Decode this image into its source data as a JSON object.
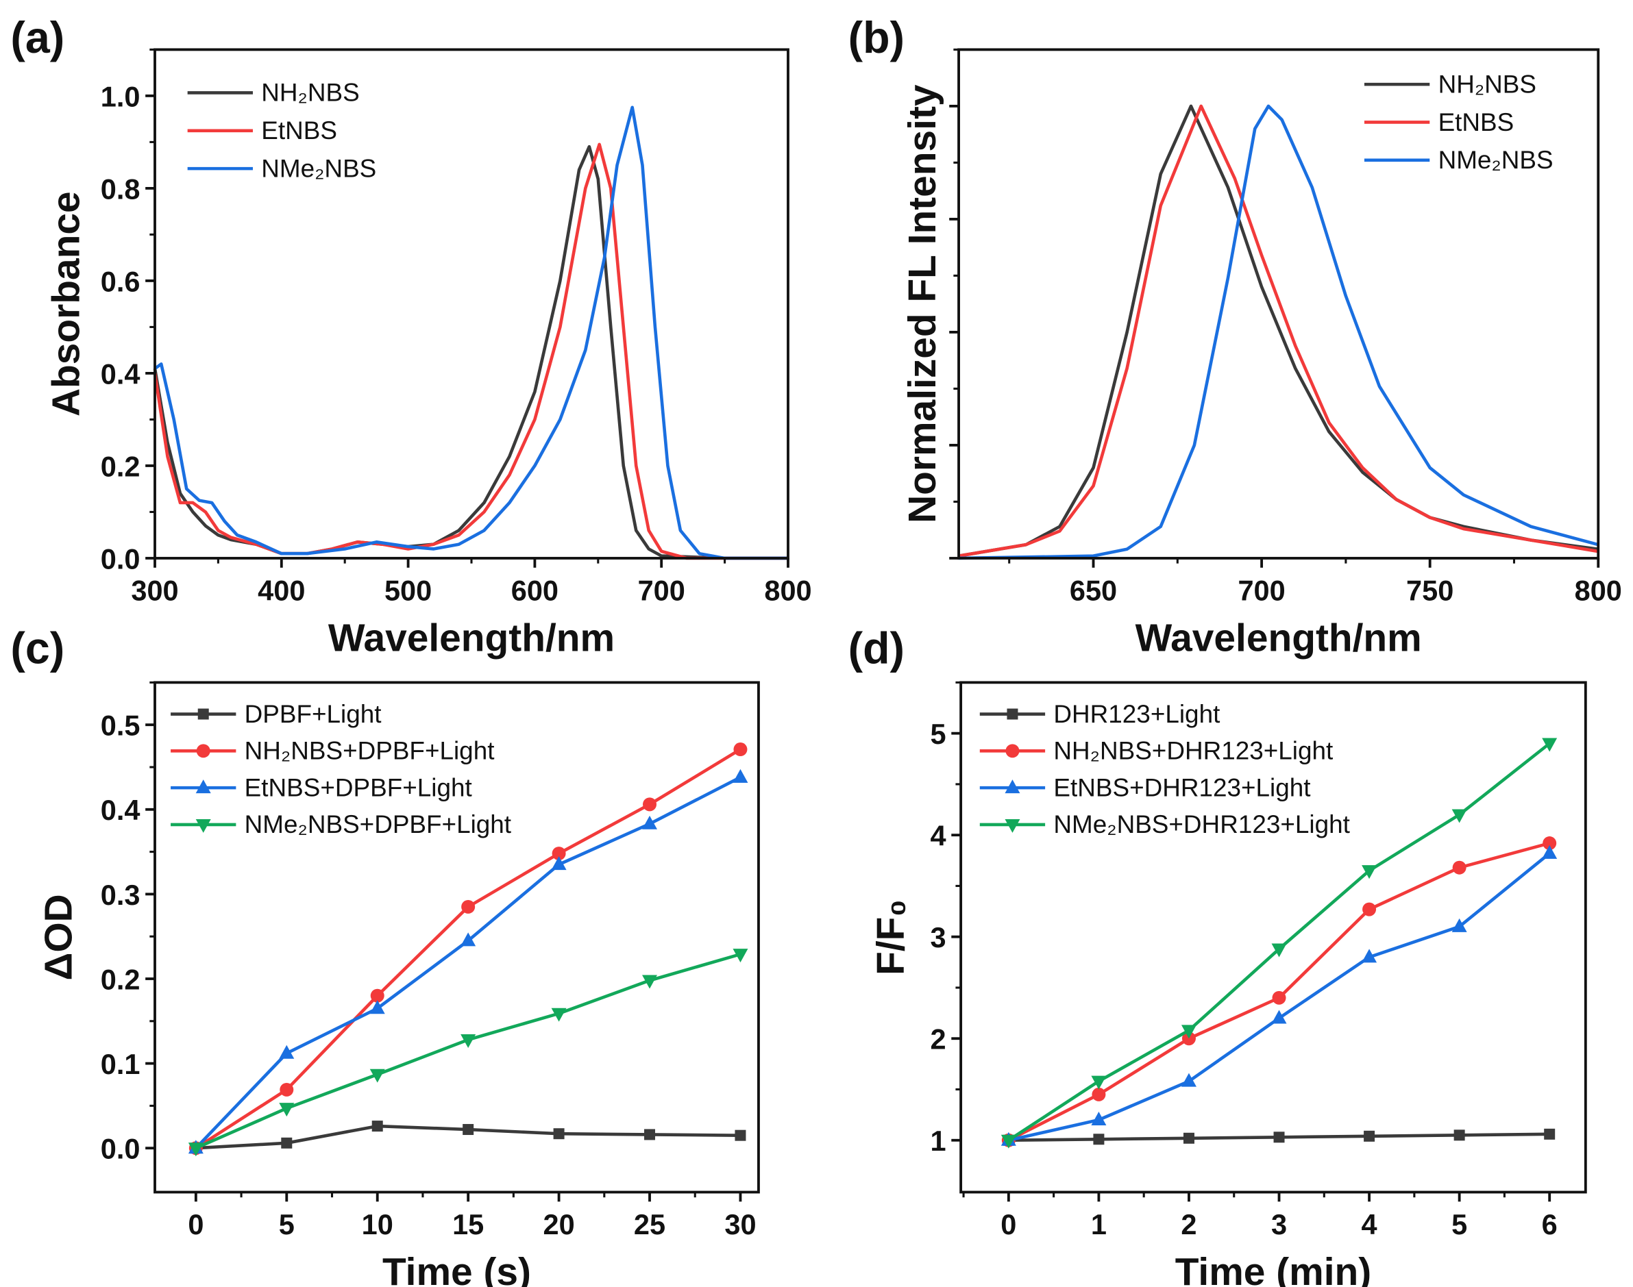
{
  "colors": {
    "black": "#3a3a3a",
    "red": "#f23a3a",
    "blue": "#1a6fe0",
    "green": "#12a85a"
  },
  "chart_data": [
    {
      "panel": "(a)",
      "type": "line",
      "xlabel": "Wavelength/nm",
      "ylabel": "Absorbance",
      "xlim": [
        300,
        800
      ],
      "ylim": [
        0,
        1.1
      ],
      "xticks": [
        300,
        400,
        500,
        600,
        700,
        800
      ],
      "yticks": [
        0.0,
        0.2,
        0.4,
        0.6,
        0.8,
        1.0
      ],
      "ytick_labels": [
        "0.0",
        "0.2",
        "0.4",
        "0.6",
        "0.8",
        "1.0"
      ],
      "legend": "top-left",
      "series": [
        {
          "name": "NH₂NBS",
          "color": "black",
          "points": [
            [
              300,
              0.41
            ],
            [
              310,
              0.25
            ],
            [
              320,
              0.14
            ],
            [
              330,
              0.1
            ],
            [
              340,
              0.07
            ],
            [
              350,
              0.05
            ],
            [
              360,
              0.04
            ],
            [
              380,
              0.03
            ],
            [
              400,
              0.01
            ],
            [
              420,
              0.01
            ],
            [
              440,
              0.02
            ],
            [
              460,
              0.035
            ],
            [
              480,
              0.03
            ],
            [
              500,
              0.025
            ],
            [
              520,
              0.03
            ],
            [
              540,
              0.06
            ],
            [
              560,
              0.12
            ],
            [
              580,
              0.22
            ],
            [
              600,
              0.36
            ],
            [
              620,
              0.6
            ],
            [
              635,
              0.84
            ],
            [
              643,
              0.89
            ],
            [
              650,
              0.82
            ],
            [
              660,
              0.5
            ],
            [
              670,
              0.2
            ],
            [
              680,
              0.06
            ],
            [
              690,
              0.02
            ],
            [
              700,
              0.005
            ],
            [
              750,
              0
            ],
            [
              800,
              0
            ]
          ]
        },
        {
          "name": "EtNBS",
          "color": "red",
          "points": [
            [
              300,
              0.4
            ],
            [
              310,
              0.22
            ],
            [
              320,
              0.12
            ],
            [
              330,
              0.12
            ],
            [
              340,
              0.1
            ],
            [
              350,
              0.06
            ],
            [
              360,
              0.045
            ],
            [
              380,
              0.03
            ],
            [
              400,
              0.01
            ],
            [
              420,
              0.01
            ],
            [
              440,
              0.02
            ],
            [
              460,
              0.035
            ],
            [
              480,
              0.03
            ],
            [
              500,
              0.02
            ],
            [
              520,
              0.03
            ],
            [
              540,
              0.05
            ],
            [
              560,
              0.1
            ],
            [
              580,
              0.18
            ],
            [
              600,
              0.3
            ],
            [
              620,
              0.5
            ],
            [
              640,
              0.8
            ],
            [
              651,
              0.895
            ],
            [
              660,
              0.8
            ],
            [
              670,
              0.5
            ],
            [
              680,
              0.2
            ],
            [
              690,
              0.06
            ],
            [
              700,
              0.015
            ],
            [
              720,
              0
            ],
            [
              800,
              0
            ]
          ]
        },
        {
          "name": "NMe₂NBS",
          "color": "blue",
          "points": [
            [
              300,
              0.41
            ],
            [
              305,
              0.42
            ],
            [
              315,
              0.3
            ],
            [
              325,
              0.15
            ],
            [
              335,
              0.125
            ],
            [
              345,
              0.12
            ],
            [
              355,
              0.08
            ],
            [
              365,
              0.05
            ],
            [
              380,
              0.035
            ],
            [
              400,
              0.01
            ],
            [
              420,
              0.01
            ],
            [
              450,
              0.02
            ],
            [
              475,
              0.035
            ],
            [
              500,
              0.025
            ],
            [
              520,
              0.02
            ],
            [
              540,
              0.03
            ],
            [
              560,
              0.06
            ],
            [
              580,
              0.12
            ],
            [
              600,
              0.2
            ],
            [
              620,
              0.3
            ],
            [
              640,
              0.45
            ],
            [
              655,
              0.65
            ],
            [
              665,
              0.85
            ],
            [
              677,
              0.975
            ],
            [
              685,
              0.85
            ],
            [
              695,
              0.5
            ],
            [
              705,
              0.2
            ],
            [
              715,
              0.06
            ],
            [
              730,
              0.01
            ],
            [
              750,
              0
            ],
            [
              800,
              0
            ]
          ]
        }
      ]
    },
    {
      "panel": "(b)",
      "type": "line",
      "xlabel": "Wavelength/nm",
      "ylabel": "Normalized FL Intensity",
      "xlim": [
        610,
        800
      ],
      "ylim": [
        0,
        1.125
      ],
      "xticks": [
        650,
        700,
        750,
        800
      ],
      "yticks": [
        0,
        0.25,
        0.5,
        0.75,
        1.0
      ],
      "ytick_labels": [],
      "legend": "top-right",
      "series": [
        {
          "name": "NH₂NBS",
          "color": "black",
          "points": [
            [
              610,
              0.005
            ],
            [
              630,
              0.03
            ],
            [
              640,
              0.07
            ],
            [
              650,
              0.2
            ],
            [
              660,
              0.5
            ],
            [
              670,
              0.85
            ],
            [
              679,
              1.0
            ],
            [
              690,
              0.82
            ],
            [
              700,
              0.6
            ],
            [
              710,
              0.42
            ],
            [
              720,
              0.28
            ],
            [
              730,
              0.19
            ],
            [
              740,
              0.13
            ],
            [
              750,
              0.09
            ],
            [
              760,
              0.07
            ],
            [
              780,
              0.04
            ],
            [
              800,
              0.02
            ]
          ]
        },
        {
          "name": "EtNBS",
          "color": "red",
          "points": [
            [
              610,
              0.005
            ],
            [
              630,
              0.03
            ],
            [
              640,
              0.06
            ],
            [
              650,
              0.16
            ],
            [
              660,
              0.42
            ],
            [
              670,
              0.78
            ],
            [
              682,
              1.0
            ],
            [
              692,
              0.84
            ],
            [
              700,
              0.67
            ],
            [
              710,
              0.47
            ],
            [
              720,
              0.3
            ],
            [
              730,
              0.2
            ],
            [
              740,
              0.13
            ],
            [
              750,
              0.09
            ],
            [
              760,
              0.065
            ],
            [
              780,
              0.04
            ],
            [
              800,
              0.015
            ]
          ]
        },
        {
          "name": "NMe₂NBS",
          "color": "blue",
          "points": [
            [
              610,
              0
            ],
            [
              650,
              0.005
            ],
            [
              660,
              0.02
            ],
            [
              670,
              0.07
            ],
            [
              680,
              0.25
            ],
            [
              690,
              0.62
            ],
            [
              698,
              0.95
            ],
            [
              702,
              1.0
            ],
            [
              706,
              0.97
            ],
            [
              715,
              0.82
            ],
            [
              725,
              0.58
            ],
            [
              735,
              0.38
            ],
            [
              750,
              0.2
            ],
            [
              760,
              0.14
            ],
            [
              780,
              0.07
            ],
            [
              800,
              0.03
            ]
          ]
        }
      ]
    },
    {
      "panel": "(c)",
      "type": "line",
      "xlabel": "Time (s)",
      "ylabel": "ΔOD",
      "xlim": [
        -2.26,
        31
      ],
      "ylim": [
        -0.052,
        0.55
      ],
      "xticks": [
        0,
        5,
        10,
        15,
        20,
        25,
        30
      ],
      "yticks": [
        0.0,
        0.1,
        0.2,
        0.3,
        0.4,
        0.5
      ],
      "ytick_labels": [
        "0.0",
        "0.1",
        "0.2",
        "0.3",
        "0.4",
        "0.5"
      ],
      "legend": "top-left",
      "x": [
        0,
        5,
        10,
        15,
        20,
        25,
        30
      ],
      "series": [
        {
          "name": "DPBF+Light",
          "color": "black",
          "marker": "square",
          "values": [
            0,
            0.006,
            0.026,
            0.022,
            0.017,
            0.016,
            0.015
          ]
        },
        {
          "name": "NH₂NBS+DPBF+Light",
          "color": "red",
          "marker": "circle",
          "values": [
            0,
            0.069,
            0.18,
            0.285,
            0.348,
            0.406,
            0.471
          ]
        },
        {
          "name": "EtNBS+DPBF+Light",
          "color": "blue",
          "marker": "triangle-up",
          "values": [
            0,
            0.112,
            0.165,
            0.245,
            0.335,
            0.383,
            0.438
          ]
        },
        {
          "name": "NMe₂NBS+DPBF+Light",
          "color": "green",
          "marker": "triangle-down",
          "values": [
            0,
            0.047,
            0.087,
            0.128,
            0.159,
            0.198,
            0.229
          ]
        }
      ]
    },
    {
      "panel": "(d)",
      "type": "line",
      "xlabel": "Time (min)",
      "ylabel": "F/F₀",
      "xlim": [
        -0.53,
        6.4
      ],
      "ylim": [
        0.49,
        5.5
      ],
      "xticks": [
        0,
        1,
        2,
        3,
        4,
        5,
        6
      ],
      "yticks": [
        1,
        2,
        3,
        4,
        5
      ],
      "ytick_labels": [
        "1",
        "2",
        "3",
        "4",
        "5"
      ],
      "legend": "top-left",
      "x": [
        0,
        1,
        2,
        3,
        4,
        5,
        6
      ],
      "series": [
        {
          "name": "DHR123+Light",
          "color": "black",
          "marker": "square",
          "values": [
            1,
            1.01,
            1.02,
            1.03,
            1.04,
            1.05,
            1.06
          ]
        },
        {
          "name": "NH₂NBS+DHR123+Light",
          "color": "red",
          "marker": "circle",
          "values": [
            1,
            1.45,
            2.0,
            2.4,
            3.27,
            3.68,
            3.92
          ]
        },
        {
          "name": "EtNBS+DHR123+Light",
          "color": "blue",
          "marker": "triangle-up",
          "values": [
            1,
            1.2,
            1.58,
            2.2,
            2.8,
            3.1,
            3.82
          ]
        },
        {
          "name": "NMe₂NBS+DHR123+Light",
          "color": "green",
          "marker": "triangle-down",
          "values": [
            1,
            1.58,
            2.08,
            2.88,
            3.65,
            4.2,
            4.9
          ]
        }
      ]
    }
  ]
}
